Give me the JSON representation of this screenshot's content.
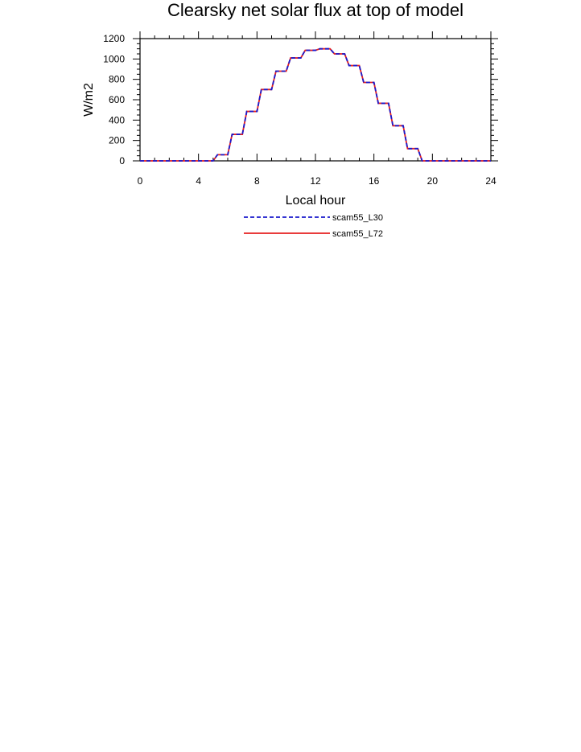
{
  "chart_data": {
    "type": "line",
    "title": "Clearsky net solar flux at top of model",
    "xlabel": "Local hour",
    "ylabel": "W/m2",
    "xlim": [
      0,
      24
    ],
    "ylim": [
      0,
      1200
    ],
    "xticks": [
      0,
      4,
      8,
      12,
      16,
      20,
      24
    ],
    "yticks": [
      0,
      200,
      400,
      600,
      800,
      1000,
      1200
    ],
    "grid": false,
    "legend_position": "bottom-center",
    "x": [
      0,
      1,
      2,
      3,
      4,
      5,
      5.3,
      6,
      6.3,
      7,
      7.3,
      8,
      8.3,
      9,
      9.3,
      10,
      10.3,
      11,
      11.3,
      12,
      12.3,
      13,
      13.3,
      14,
      14.3,
      15,
      15.3,
      16,
      16.3,
      17,
      17.3,
      18,
      18.3,
      19,
      19.3,
      20,
      21,
      22,
      23,
      24
    ],
    "series": [
      {
        "name": "scam55_L30",
        "color": "#1a1acc",
        "dash": "dashed",
        "values": [
          0,
          0,
          0,
          0,
          0,
          0,
          60,
          60,
          260,
          260,
          485,
          485,
          700,
          700,
          880,
          880,
          1010,
          1010,
          1085,
          1085,
          1100,
          1100,
          1050,
          1050,
          935,
          935,
          770,
          770,
          565,
          565,
          345,
          345,
          120,
          120,
          0,
          0,
          0,
          0,
          0,
          0
        ]
      },
      {
        "name": "scam55_L72",
        "color": "#e62020",
        "dash": "solid",
        "values": [
          0,
          0,
          0,
          0,
          0,
          0,
          60,
          60,
          260,
          260,
          485,
          485,
          700,
          700,
          880,
          880,
          1010,
          1010,
          1085,
          1085,
          1100,
          1100,
          1050,
          1050,
          935,
          935,
          770,
          770,
          565,
          565,
          345,
          345,
          120,
          120,
          0,
          0,
          0,
          0,
          0,
          0
        ]
      }
    ]
  }
}
